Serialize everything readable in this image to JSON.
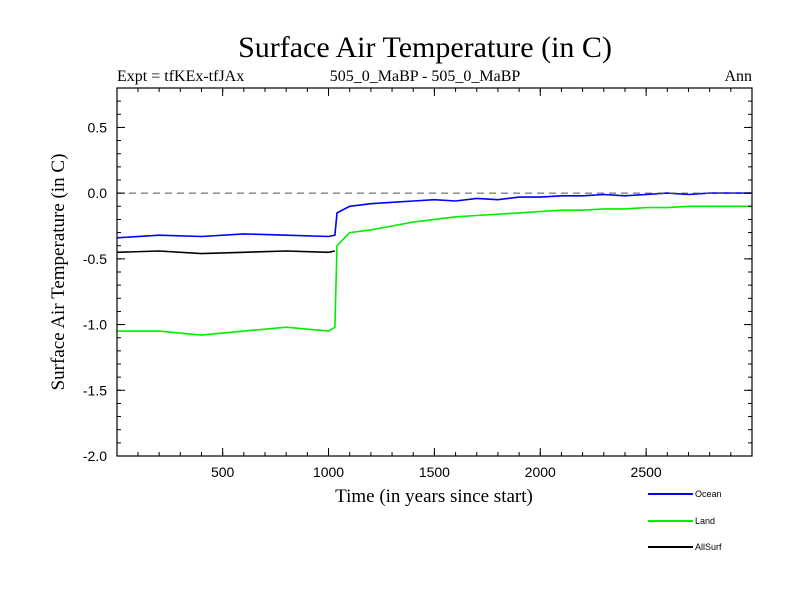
{
  "chart_data": {
    "type": "line",
    "title": "Surface Air Temperature (in C)",
    "subtitle_left": "Expt = tfKEx-tfJAx",
    "subtitle_center": "505_0_MaBP - 505_0_MaBP",
    "subtitle_right": "Ann",
    "xlabel": "Time (in years since start)",
    "ylabel": "Surface Air Temperature (in C)",
    "xlim": [
      1,
      3000
    ],
    "ylim": [
      -2.0,
      0.8
    ],
    "xticks": [
      500,
      1000,
      1500,
      2000,
      2500
    ],
    "xtick_labels": [
      "500",
      "1000",
      "1500",
      "2000",
      "2500"
    ],
    "yticks": [
      -2.0,
      -1.5,
      -1.0,
      -0.5,
      0.0,
      0.5
    ],
    "ytick_labels": [
      "-2.0",
      "-1.5",
      "-1.0",
      "-0.5",
      "0.0",
      "0.5"
    ],
    "reference_line": {
      "y": 0.0,
      "style": "dashed"
    },
    "legend_position": "bottom-right, outside plot",
    "series": [
      {
        "name": "Ocean",
        "color": "#0000ff",
        "x": [
          1,
          200,
          400,
          600,
          800,
          1000,
          1030,
          1040,
          1100,
          1200,
          1300,
          1400,
          1500,
          1600,
          1700,
          1800,
          1900,
          2000,
          2100,
          2200,
          2300,
          2400,
          2500,
          2600,
          2700,
          2800,
          2900,
          3000
        ],
        "values": [
          -0.34,
          -0.32,
          -0.33,
          -0.31,
          -0.32,
          -0.33,
          -0.32,
          -0.15,
          -0.1,
          -0.08,
          -0.07,
          -0.06,
          -0.05,
          -0.06,
          -0.04,
          -0.05,
          -0.03,
          -0.03,
          -0.02,
          -0.02,
          -0.01,
          -0.02,
          -0.01,
          0.0,
          -0.01,
          0.0,
          0.0,
          0.0
        ]
      },
      {
        "name": "Land",
        "color": "#00ee00",
        "x": [
          1,
          200,
          400,
          600,
          800,
          1000,
          1030,
          1040,
          1100,
          1200,
          1300,
          1400,
          1500,
          1600,
          1700,
          1800,
          1900,
          2000,
          2100,
          2200,
          2300,
          2400,
          2500,
          2600,
          2700,
          2800,
          2900,
          3000
        ],
        "values": [
          -1.05,
          -1.05,
          -1.08,
          -1.05,
          -1.02,
          -1.05,
          -1.02,
          -0.4,
          -0.3,
          -0.28,
          -0.25,
          -0.22,
          -0.2,
          -0.18,
          -0.17,
          -0.16,
          -0.15,
          -0.14,
          -0.13,
          -0.13,
          -0.12,
          -0.12,
          -0.11,
          -0.11,
          -0.1,
          -0.1,
          -0.1,
          -0.1
        ]
      },
      {
        "name": "AllSurf",
        "color": "#000000",
        "x": [
          1,
          200,
          400,
          600,
          800,
          1000,
          1030
        ],
        "values": [
          -0.45,
          -0.44,
          -0.46,
          -0.45,
          -0.44,
          -0.45,
          -0.44
        ]
      }
    ]
  }
}
